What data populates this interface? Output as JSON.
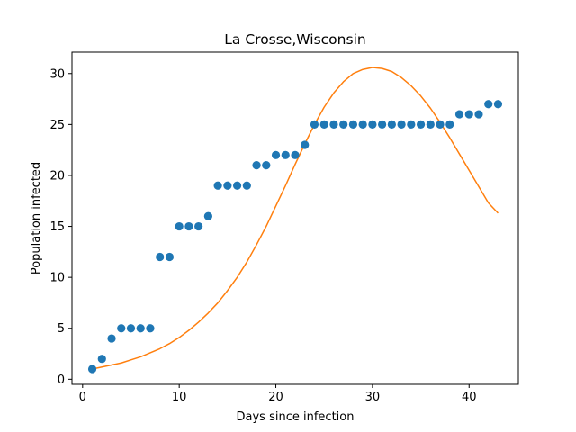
{
  "chart_data": {
    "type": "scatter",
    "title": "La Crosse,Wisconsin",
    "xlabel": "Days since infection",
    "ylabel": "Population infected",
    "xlim": [
      -1.1,
      45.1
    ],
    "ylim": [
      -0.5,
      32.1
    ],
    "xticks": [
      0,
      10,
      20,
      30,
      40
    ],
    "yticks": [
      0,
      5,
      10,
      15,
      20,
      25,
      30
    ],
    "grid": false,
    "series": [
      {
        "kind": "scatter",
        "color": "#1f77b4",
        "x": [
          1,
          2,
          3,
          4,
          5,
          6,
          7,
          8,
          9,
          10,
          11,
          12,
          13,
          14,
          15,
          16,
          17,
          18,
          19,
          20,
          21,
          22,
          23,
          24,
          25,
          26,
          27,
          28,
          29,
          30,
          31,
          32,
          33,
          34,
          35,
          36,
          37,
          38,
          39,
          40,
          41,
          42,
          43
        ],
        "y": [
          1,
          2,
          4,
          5,
          5,
          5,
          5,
          12,
          12,
          15,
          15,
          15,
          16,
          19,
          19,
          19,
          19,
          21,
          21,
          22,
          22,
          22,
          23,
          25,
          25,
          25,
          25,
          25,
          25,
          25,
          25,
          25,
          25,
          25,
          25,
          25,
          25,
          25,
          26,
          26,
          26,
          27,
          27
        ]
      },
      {
        "kind": "line",
        "color": "#ff7f0e",
        "x": [
          1,
          2,
          3,
          4,
          5,
          6,
          7,
          8,
          9,
          10,
          11,
          12,
          13,
          14,
          15,
          16,
          17,
          18,
          19,
          20,
          21,
          22,
          23,
          24,
          25,
          26,
          27,
          28,
          29,
          30,
          31,
          32,
          33,
          34,
          35,
          36,
          37,
          38,
          39,
          40,
          41,
          42,
          43
        ],
        "y": [
          1.0,
          1.2,
          1.4,
          1.6,
          1.9,
          2.2,
          2.6,
          3.0,
          3.5,
          4.1,
          4.8,
          5.6,
          6.5,
          7.5,
          8.7,
          10.0,
          11.5,
          13.2,
          15.0,
          17.0,
          19.0,
          21.1,
          23.1,
          25.0,
          26.7,
          28.1,
          29.2,
          30.0,
          30.4,
          30.6,
          30.5,
          30.2,
          29.6,
          28.8,
          27.8,
          26.6,
          25.2,
          23.7,
          22.1,
          20.5,
          18.9,
          17.3,
          16.3
        ]
      }
    ]
  }
}
